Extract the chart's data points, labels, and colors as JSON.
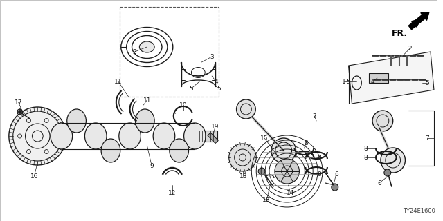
{
  "bg": "#ffffff",
  "lc": "#1a1a1a",
  "tc": "#1a1a1a",
  "diagram_code": "TY24E1600",
  "fr_text": "FR.",
  "font_size": 6.5,
  "figsize": [
    6.4,
    3.2
  ],
  "dpi": 100
}
